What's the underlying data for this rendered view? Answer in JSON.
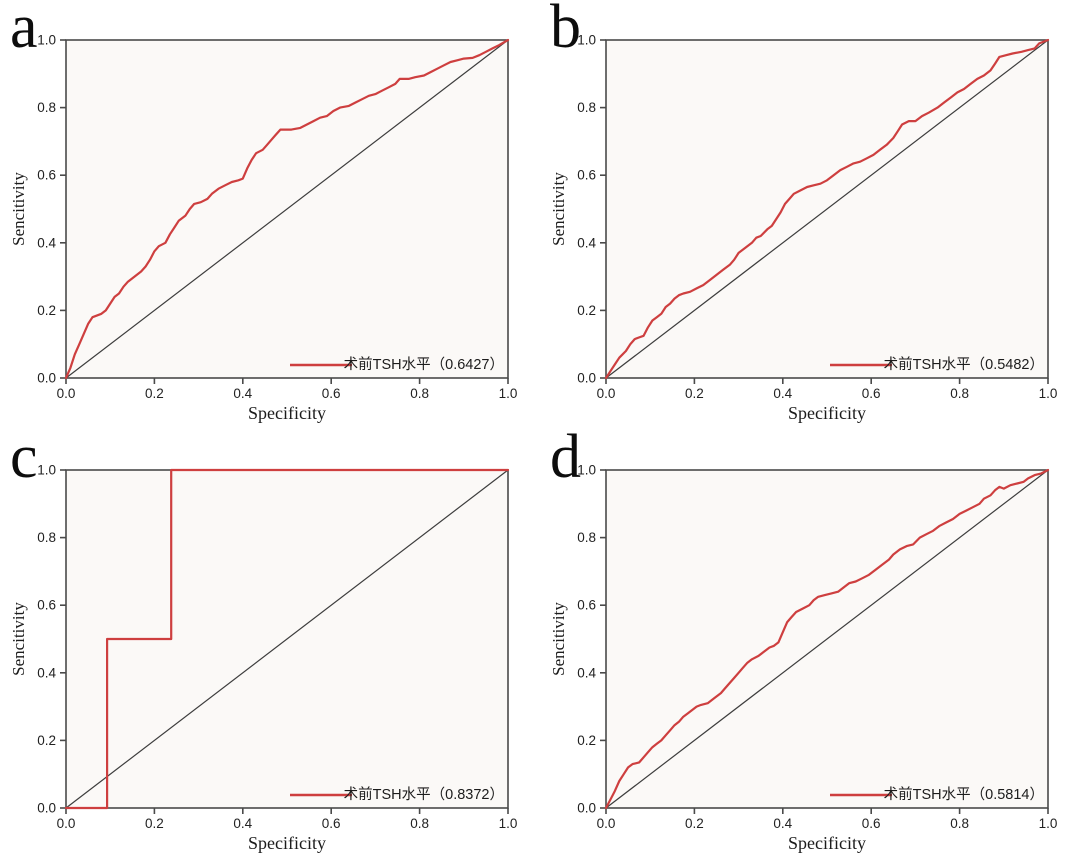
{
  "figure": {
    "description": "2x2 grid of ROC curve plots",
    "panels": [
      {
        "label": "a",
        "legend": "术前TSH水平（0.6427）",
        "auc": "0.6427"
      },
      {
        "label": "b",
        "legend": "术前TSH水平（0.5482）",
        "auc": "0.5482"
      },
      {
        "label": "c",
        "legend": "术前TSH水平（0.8372）",
        "auc": "0.8372"
      },
      {
        "label": "d",
        "legend": "术前TSH水平（0.5814）",
        "auc": "0.5814"
      }
    ]
  },
  "axes": {
    "xlabel": "Specificity",
    "ylabel": "Sencitivity",
    "tick_labels": [
      "0.0",
      "0.2",
      "0.4",
      "0.6",
      "0.8",
      "1.0"
    ],
    "tick_values": [
      0,
      0.2,
      0.4,
      0.6,
      0.8,
      1
    ],
    "xlim": [
      0,
      1
    ],
    "ylim": [
      0,
      1
    ],
    "grid": false,
    "legend_position": "lower right"
  },
  "colors": {
    "roc_line": "#ce3f3f",
    "reference_line": "#3d3d3d",
    "axis_box": "#4a4a4a",
    "plot_bg": "#fbf9f7",
    "text": "#1c1c1c",
    "tick_text": "#222222"
  },
  "chart_data": [
    {
      "type": "line",
      "panel": "a",
      "title": "ROC curve a",
      "xlabel": "Specificity",
      "ylabel": "Sencitivity",
      "xlim": [
        0,
        1
      ],
      "ylim": [
        0,
        1
      ],
      "legend": "术前TSH水平（0.6427）",
      "auc": 0.6427,
      "series": [
        {
          "name": "术前TSH水平",
          "points": [
            [
              0,
              0
            ],
            [
              0.01,
              0.03
            ],
            [
              0.02,
              0.07
            ],
            [
              0.03,
              0.1
            ],
            [
              0.04,
              0.13
            ],
            [
              0.05,
              0.16
            ],
            [
              0.06,
              0.18
            ],
            [
              0.08,
              0.19
            ],
            [
              0.09,
              0.2
            ],
            [
              0.1,
              0.22
            ],
            [
              0.11,
              0.24
            ],
            [
              0.12,
              0.25
            ],
            [
              0.13,
              0.27
            ],
            [
              0.14,
              0.285
            ],
            [
              0.155,
              0.3
            ],
            [
              0.17,
              0.315
            ],
            [
              0.18,
              0.33
            ],
            [
              0.19,
              0.35
            ],
            [
              0.2,
              0.375
            ],
            [
              0.21,
              0.39
            ],
            [
              0.225,
              0.4
            ],
            [
              0.235,
              0.425
            ],
            [
              0.245,
              0.445
            ],
            [
              0.255,
              0.465
            ],
            [
              0.27,
              0.48
            ],
            [
              0.28,
              0.5
            ],
            [
              0.29,
              0.515
            ],
            [
              0.305,
              0.52
            ],
            [
              0.32,
              0.53
            ],
            [
              0.33,
              0.545
            ],
            [
              0.345,
              0.56
            ],
            [
              0.36,
              0.57
            ],
            [
              0.375,
              0.58
            ],
            [
              0.39,
              0.585
            ],
            [
              0.4,
              0.59
            ],
            [
              0.41,
              0.62
            ],
            [
              0.42,
              0.645
            ],
            [
              0.43,
              0.665
            ],
            [
              0.445,
              0.675
            ],
            [
              0.455,
              0.69
            ],
            [
              0.465,
              0.705
            ],
            [
              0.475,
              0.72
            ],
            [
              0.485,
              0.735
            ],
            [
              0.51,
              0.735
            ],
            [
              0.53,
              0.74
            ],
            [
              0.545,
              0.75
            ],
            [
              0.56,
              0.76
            ],
            [
              0.575,
              0.77
            ],
            [
              0.59,
              0.775
            ],
            [
              0.605,
              0.79
            ],
            [
              0.62,
              0.8
            ],
            [
              0.64,
              0.805
            ],
            [
              0.655,
              0.815
            ],
            [
              0.67,
              0.825
            ],
            [
              0.685,
              0.835
            ],
            [
              0.7,
              0.84
            ],
            [
              0.715,
              0.85
            ],
            [
              0.73,
              0.86
            ],
            [
              0.745,
              0.87
            ],
            [
              0.755,
              0.885
            ],
            [
              0.775,
              0.885
            ],
            [
              0.79,
              0.89
            ],
            [
              0.81,
              0.895
            ],
            [
              0.825,
              0.905
            ],
            [
              0.84,
              0.915
            ],
            [
              0.855,
              0.925
            ],
            [
              0.87,
              0.935
            ],
            [
              0.885,
              0.94
            ],
            [
              0.9,
              0.945
            ],
            [
              0.92,
              0.947
            ],
            [
              0.935,
              0.955
            ],
            [
              0.95,
              0.965
            ],
            [
              0.965,
              0.975
            ],
            [
              0.98,
              0.985
            ],
            [
              1,
              1
            ]
          ]
        },
        {
          "name": "reference",
          "points": [
            [
              0,
              0
            ],
            [
              1,
              1
            ]
          ]
        }
      ]
    },
    {
      "type": "line",
      "panel": "b",
      "title": "ROC curve b",
      "xlabel": "Specificity",
      "ylabel": "Sencitivity",
      "xlim": [
        0,
        1
      ],
      "ylim": [
        0,
        1
      ],
      "legend": "术前TSH水平（0.5482）",
      "auc": 0.5482,
      "series": [
        {
          "name": "术前TSH水平",
          "points": [
            [
              0,
              0
            ],
            [
              0.01,
              0.02
            ],
            [
              0.02,
              0.04
            ],
            [
              0.03,
              0.06
            ],
            [
              0.045,
              0.08
            ],
            [
              0.055,
              0.1
            ],
            [
              0.065,
              0.115
            ],
            [
              0.075,
              0.12
            ],
            [
              0.085,
              0.125
            ],
            [
              0.095,
              0.15
            ],
            [
              0.105,
              0.17
            ],
            [
              0.115,
              0.18
            ],
            [
              0.125,
              0.19
            ],
            [
              0.135,
              0.21
            ],
            [
              0.145,
              0.22
            ],
            [
              0.155,
              0.235
            ],
            [
              0.165,
              0.245
            ],
            [
              0.175,
              0.25
            ],
            [
              0.19,
              0.255
            ],
            [
              0.205,
              0.265
            ],
            [
              0.22,
              0.275
            ],
            [
              0.235,
              0.29
            ],
            [
              0.25,
              0.305
            ],
            [
              0.265,
              0.32
            ],
            [
              0.28,
              0.335
            ],
            [
              0.29,
              0.35
            ],
            [
              0.3,
              0.37
            ],
            [
              0.315,
              0.385
            ],
            [
              0.33,
              0.4
            ],
            [
              0.34,
              0.415
            ],
            [
              0.35,
              0.42
            ],
            [
              0.365,
              0.44
            ],
            [
              0.375,
              0.45
            ],
            [
              0.385,
              0.47
            ],
            [
              0.395,
              0.49
            ],
            [
              0.405,
              0.515
            ],
            [
              0.415,
              0.53
            ],
            [
              0.425,
              0.545
            ],
            [
              0.44,
              0.555
            ],
            [
              0.455,
              0.565
            ],
            [
              0.47,
              0.57
            ],
            [
              0.485,
              0.575
            ],
            [
              0.5,
              0.585
            ],
            [
              0.515,
              0.6
            ],
            [
              0.53,
              0.615
            ],
            [
              0.545,
              0.625
            ],
            [
              0.56,
              0.635
            ],
            [
              0.575,
              0.64
            ],
            [
              0.59,
              0.65
            ],
            [
              0.605,
              0.66
            ],
            [
              0.62,
              0.675
            ],
            [
              0.635,
              0.69
            ],
            [
              0.65,
              0.71
            ],
            [
              0.66,
              0.73
            ],
            [
              0.67,
              0.75
            ],
            [
              0.685,
              0.76
            ],
            [
              0.7,
              0.76
            ],
            [
              0.715,
              0.775
            ],
            [
              0.73,
              0.785
            ],
            [
              0.75,
              0.8
            ],
            [
              0.765,
              0.815
            ],
            [
              0.78,
              0.83
            ],
            [
              0.795,
              0.845
            ],
            [
              0.81,
              0.855
            ],
            [
              0.825,
              0.87
            ],
            [
              0.84,
              0.885
            ],
            [
              0.855,
              0.895
            ],
            [
              0.87,
              0.91
            ],
            [
              0.88,
              0.93
            ],
            [
              0.89,
              0.95
            ],
            [
              0.905,
              0.955
            ],
            [
              0.92,
              0.96
            ],
            [
              0.94,
              0.965
            ],
            [
              0.955,
              0.97
            ],
            [
              0.97,
              0.975
            ],
            [
              0.98,
              0.99
            ],
            [
              1,
              1
            ]
          ]
        },
        {
          "name": "reference",
          "points": [
            [
              0,
              0
            ],
            [
              1,
              1
            ]
          ]
        }
      ]
    },
    {
      "type": "line",
      "panel": "c",
      "title": "ROC curve c",
      "xlabel": "Specificity",
      "ylabel": "Sencitivity",
      "xlim": [
        0,
        1
      ],
      "ylim": [
        0,
        1
      ],
      "legend": "术前TSH水平（0.8372）",
      "auc": 0.8372,
      "series": [
        {
          "name": "术前TSH水平",
          "points": [
            [
              0,
              0
            ],
            [
              0.093,
              0
            ],
            [
              0.093,
              0.5
            ],
            [
              0.238,
              0.5
            ],
            [
              0.238,
              1
            ],
            [
              1,
              1
            ]
          ]
        },
        {
          "name": "reference",
          "points": [
            [
              0,
              0
            ],
            [
              1,
              1
            ]
          ]
        }
      ]
    },
    {
      "type": "line",
      "panel": "d",
      "title": "ROC curve d",
      "xlabel": "Specificity",
      "ylabel": "Sencitivity",
      "xlim": [
        0,
        1
      ],
      "ylim": [
        0,
        1
      ],
      "legend": "术前TSH水平（0.5814）",
      "auc": 0.5814,
      "series": [
        {
          "name": "术前TSH水平",
          "points": [
            [
              0,
              0
            ],
            [
              0.01,
              0.025
            ],
            [
              0.02,
              0.05
            ],
            [
              0.03,
              0.08
            ],
            [
              0.04,
              0.1
            ],
            [
              0.05,
              0.12
            ],
            [
              0.06,
              0.13
            ],
            [
              0.075,
              0.135
            ],
            [
              0.085,
              0.15
            ],
            [
              0.095,
              0.165
            ],
            [
              0.105,
              0.18
            ],
            [
              0.115,
              0.19
            ],
            [
              0.125,
              0.2
            ],
            [
              0.135,
              0.215
            ],
            [
              0.145,
              0.23
            ],
            [
              0.155,
              0.245
            ],
            [
              0.165,
              0.255
            ],
            [
              0.175,
              0.27
            ],
            [
              0.185,
              0.28
            ],
            [
              0.195,
              0.29
            ],
            [
              0.205,
              0.3
            ],
            [
              0.215,
              0.305
            ],
            [
              0.23,
              0.31
            ],
            [
              0.245,
              0.325
            ],
            [
              0.26,
              0.34
            ],
            [
              0.27,
              0.355
            ],
            [
              0.28,
              0.37
            ],
            [
              0.29,
              0.385
            ],
            [
              0.3,
              0.4
            ],
            [
              0.31,
              0.415
            ],
            [
              0.32,
              0.43
            ],
            [
              0.33,
              0.44
            ],
            [
              0.345,
              0.45
            ],
            [
              0.355,
              0.46
            ],
            [
              0.37,
              0.475
            ],
            [
              0.38,
              0.48
            ],
            [
              0.39,
              0.49
            ],
            [
              0.4,
              0.52
            ],
            [
              0.41,
              0.55
            ],
            [
              0.42,
              0.565
            ],
            [
              0.43,
              0.58
            ],
            [
              0.445,
              0.59
            ],
            [
              0.46,
              0.6
            ],
            [
              0.47,
              0.615
            ],
            [
              0.48,
              0.625
            ],
            [
              0.495,
              0.63
            ],
            [
              0.51,
              0.635
            ],
            [
              0.525,
              0.64
            ],
            [
              0.54,
              0.655
            ],
            [
              0.55,
              0.665
            ],
            [
              0.565,
              0.67
            ],
            [
              0.58,
              0.68
            ],
            [
              0.595,
              0.69
            ],
            [
              0.61,
              0.705
            ],
            [
              0.625,
              0.72
            ],
            [
              0.64,
              0.735
            ],
            [
              0.65,
              0.75
            ],
            [
              0.665,
              0.765
            ],
            [
              0.68,
              0.775
            ],
            [
              0.695,
              0.78
            ],
            [
              0.71,
              0.8
            ],
            [
              0.725,
              0.81
            ],
            [
              0.74,
              0.82
            ],
            [
              0.755,
              0.835
            ],
            [
              0.77,
              0.845
            ],
            [
              0.785,
              0.855
            ],
            [
              0.8,
              0.87
            ],
            [
              0.815,
              0.88
            ],
            [
              0.83,
              0.89
            ],
            [
              0.845,
              0.9
            ],
            [
              0.855,
              0.915
            ],
            [
              0.87,
              0.925
            ],
            [
              0.88,
              0.94
            ],
            [
              0.89,
              0.95
            ],
            [
              0.9,
              0.945
            ],
            [
              0.915,
              0.955
            ],
            [
              0.93,
              0.96
            ],
            [
              0.945,
              0.965
            ],
            [
              0.955,
              0.975
            ],
            [
              0.97,
              0.985
            ],
            [
              0.985,
              0.99
            ],
            [
              1,
              1
            ]
          ]
        },
        {
          "name": "reference",
          "points": [
            [
              0,
              0
            ],
            [
              1,
              1
            ]
          ]
        }
      ]
    }
  ]
}
